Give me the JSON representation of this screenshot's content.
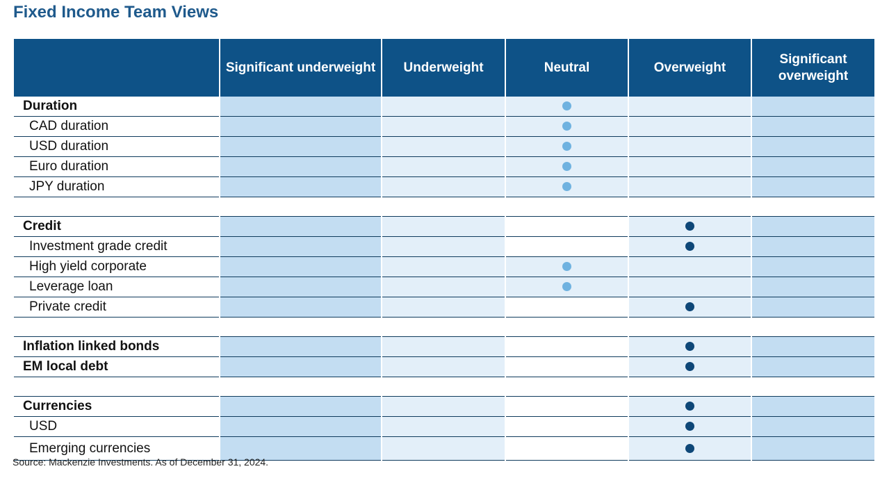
{
  "title": "Fixed Income Team Views",
  "columns": [
    "",
    "Significant underweight",
    "Underweight",
    "Neutral",
    "Overweight",
    "Significant overweight"
  ],
  "rows": [
    {
      "label": "Duration",
      "bold": true,
      "view": 3,
      "c3bg": true
    },
    {
      "label": "CAD duration",
      "bold": false,
      "view": 3,
      "c3bg": true
    },
    {
      "label": "USD duration",
      "bold": false,
      "view": 3,
      "c3bg": true
    },
    {
      "label": "Euro duration",
      "bold": false,
      "view": 3,
      "c3bg": true
    },
    {
      "label": "JPY duration",
      "bold": false,
      "view": 3,
      "c3bg": true
    },
    {
      "gap": true
    },
    {
      "label": "Credit",
      "bold": true,
      "view": 4,
      "c3bg": false
    },
    {
      "label": "Investment grade credit",
      "bold": false,
      "view": 4,
      "c3bg": false
    },
    {
      "label": "High yield corporate",
      "bold": false,
      "view": 3,
      "c3bg": true
    },
    {
      "label": "Leverage loan",
      "bold": false,
      "view": 3,
      "c3bg": true
    },
    {
      "label": "Private credit",
      "bold": false,
      "view": 4,
      "c3bg": false
    },
    {
      "gap": true
    },
    {
      "label": "Inflation linked bonds",
      "bold": true,
      "view": 4,
      "c3bg": false
    },
    {
      "label": "EM local debt",
      "bold": true,
      "view": 4,
      "c3bg": false
    },
    {
      "gap": true
    },
    {
      "label": "Currencies",
      "bold": true,
      "view": 4,
      "c3bg": false
    },
    {
      "label": "USD",
      "bold": false,
      "view": 4,
      "c3bg": false
    },
    {
      "label": "Emerging currencies",
      "bold": false,
      "view": 4,
      "c3bg": false,
      "tall": true
    }
  ],
  "colors": {
    "header": "#0e5287",
    "neutral_dot": "#6fb2e0",
    "overweight_dot": "#0e4778"
  },
  "source": "Source: Mackenzie Investments. As of December 31, 2024."
}
